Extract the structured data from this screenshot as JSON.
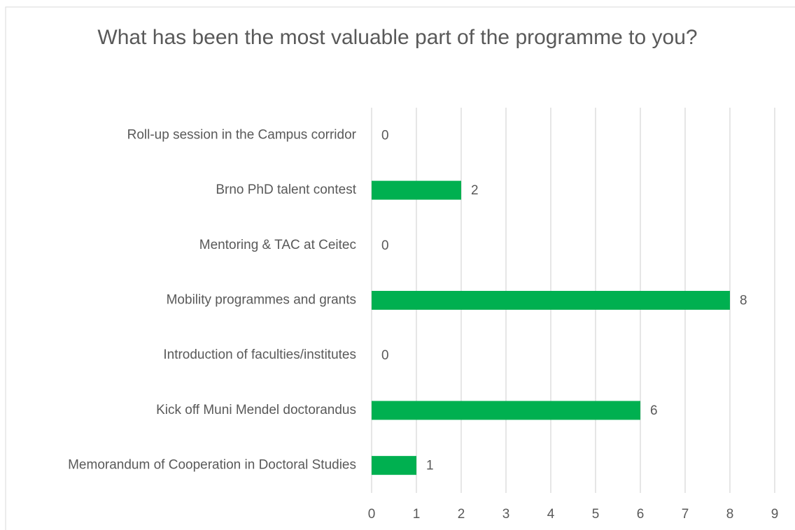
{
  "chart_data": {
    "type": "bar",
    "orientation": "horizontal",
    "title": "What has been the most valuable part of the programme to you?",
    "categories": [
      "Roll-up session in the Campus corridor",
      "Brno PhD talent contest",
      "Mentoring & TAC at Ceitec",
      "Mobility programmes and grants",
      "Introduction of faculties/institutes",
      "Kick off Muni Mendel doctorandus",
      "Memorandum of Cooperation in Doctoral Studies"
    ],
    "values": [
      0,
      2,
      0,
      8,
      0,
      6,
      1
    ],
    "color": "#00b050",
    "xlim": [
      0,
      9
    ],
    "xticks": [
      0,
      1,
      2,
      3,
      4,
      5,
      6,
      7,
      8,
      9
    ],
    "grid": true
  }
}
